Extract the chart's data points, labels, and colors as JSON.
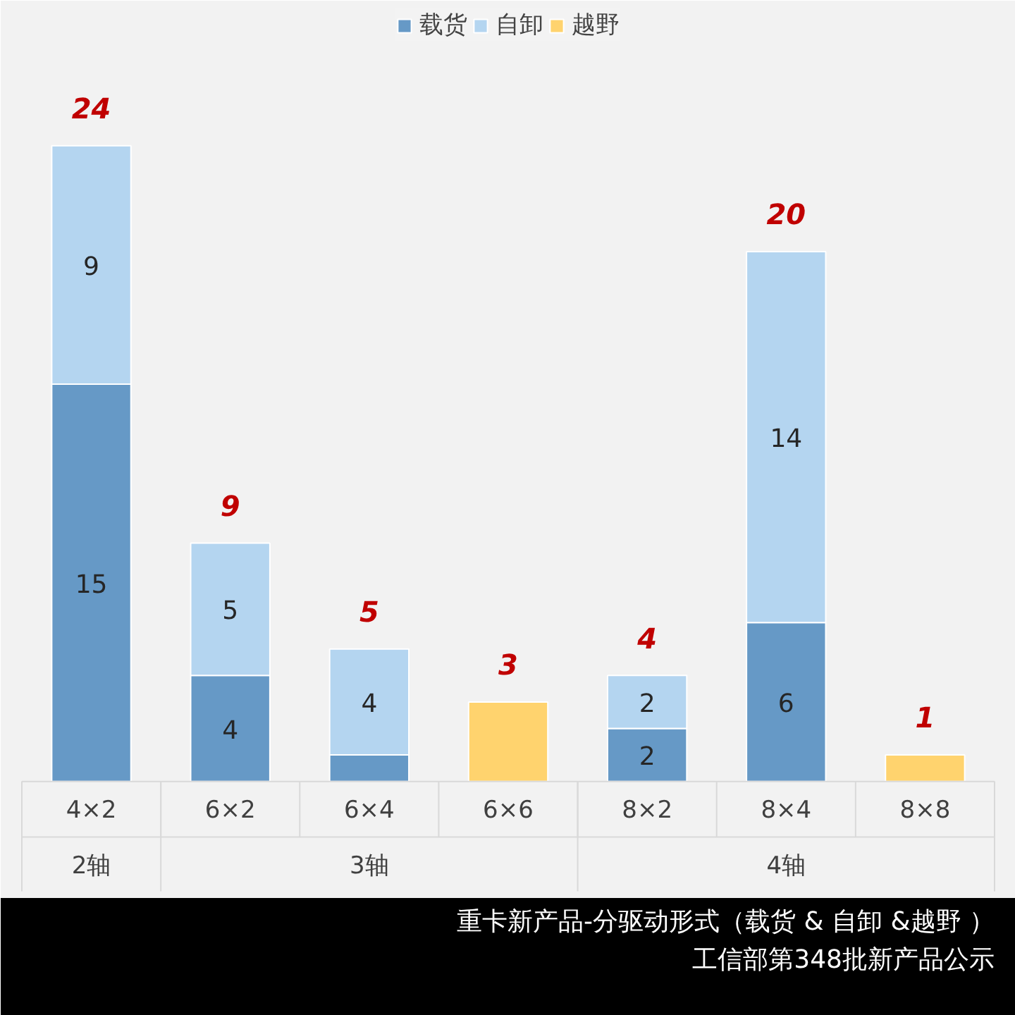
{
  "chart_data": {
    "type": "bar",
    "stacked": true,
    "title": "重卡新产品-分驱动形式（载货 & 自卸 &越野 ）",
    "subtitle": "工信部第348批新产品公示",
    "categories": [
      "4×2",
      "6×2",
      "6×4",
      "6×6",
      "8×2",
      "8×4",
      "8×8"
    ],
    "series": [
      {
        "name": "载货",
        "color": "#6699c6",
        "values": [
          15,
          4,
          1,
          null,
          2,
          6,
          null
        ],
        "value_labels": [
          "15",
          "4",
          null,
          null,
          "2",
          "6",
          null
        ]
      },
      {
        "name": "自卸",
        "color": "#b4d5f0",
        "values": [
          9,
          5,
          4,
          null,
          2,
          14,
          null
        ],
        "value_labels": [
          "9",
          "5",
          "4",
          null,
          "2",
          "14",
          null
        ]
      },
      {
        "name": "越野",
        "color": "#ffd36e",
        "values": [
          null,
          null,
          null,
          3,
          null,
          null,
          1
        ],
        "value_labels": [
          null,
          null,
          null,
          null,
          null,
          null,
          null
        ]
      }
    ],
    "totals": [
      "24",
      "9",
      "5",
      "3",
      "4",
      "20",
      "1"
    ],
    "annotations": [
      "2轴",
      "3轴",
      "4轴"
    ],
    "legend": "top",
    "grid": false
  }
}
